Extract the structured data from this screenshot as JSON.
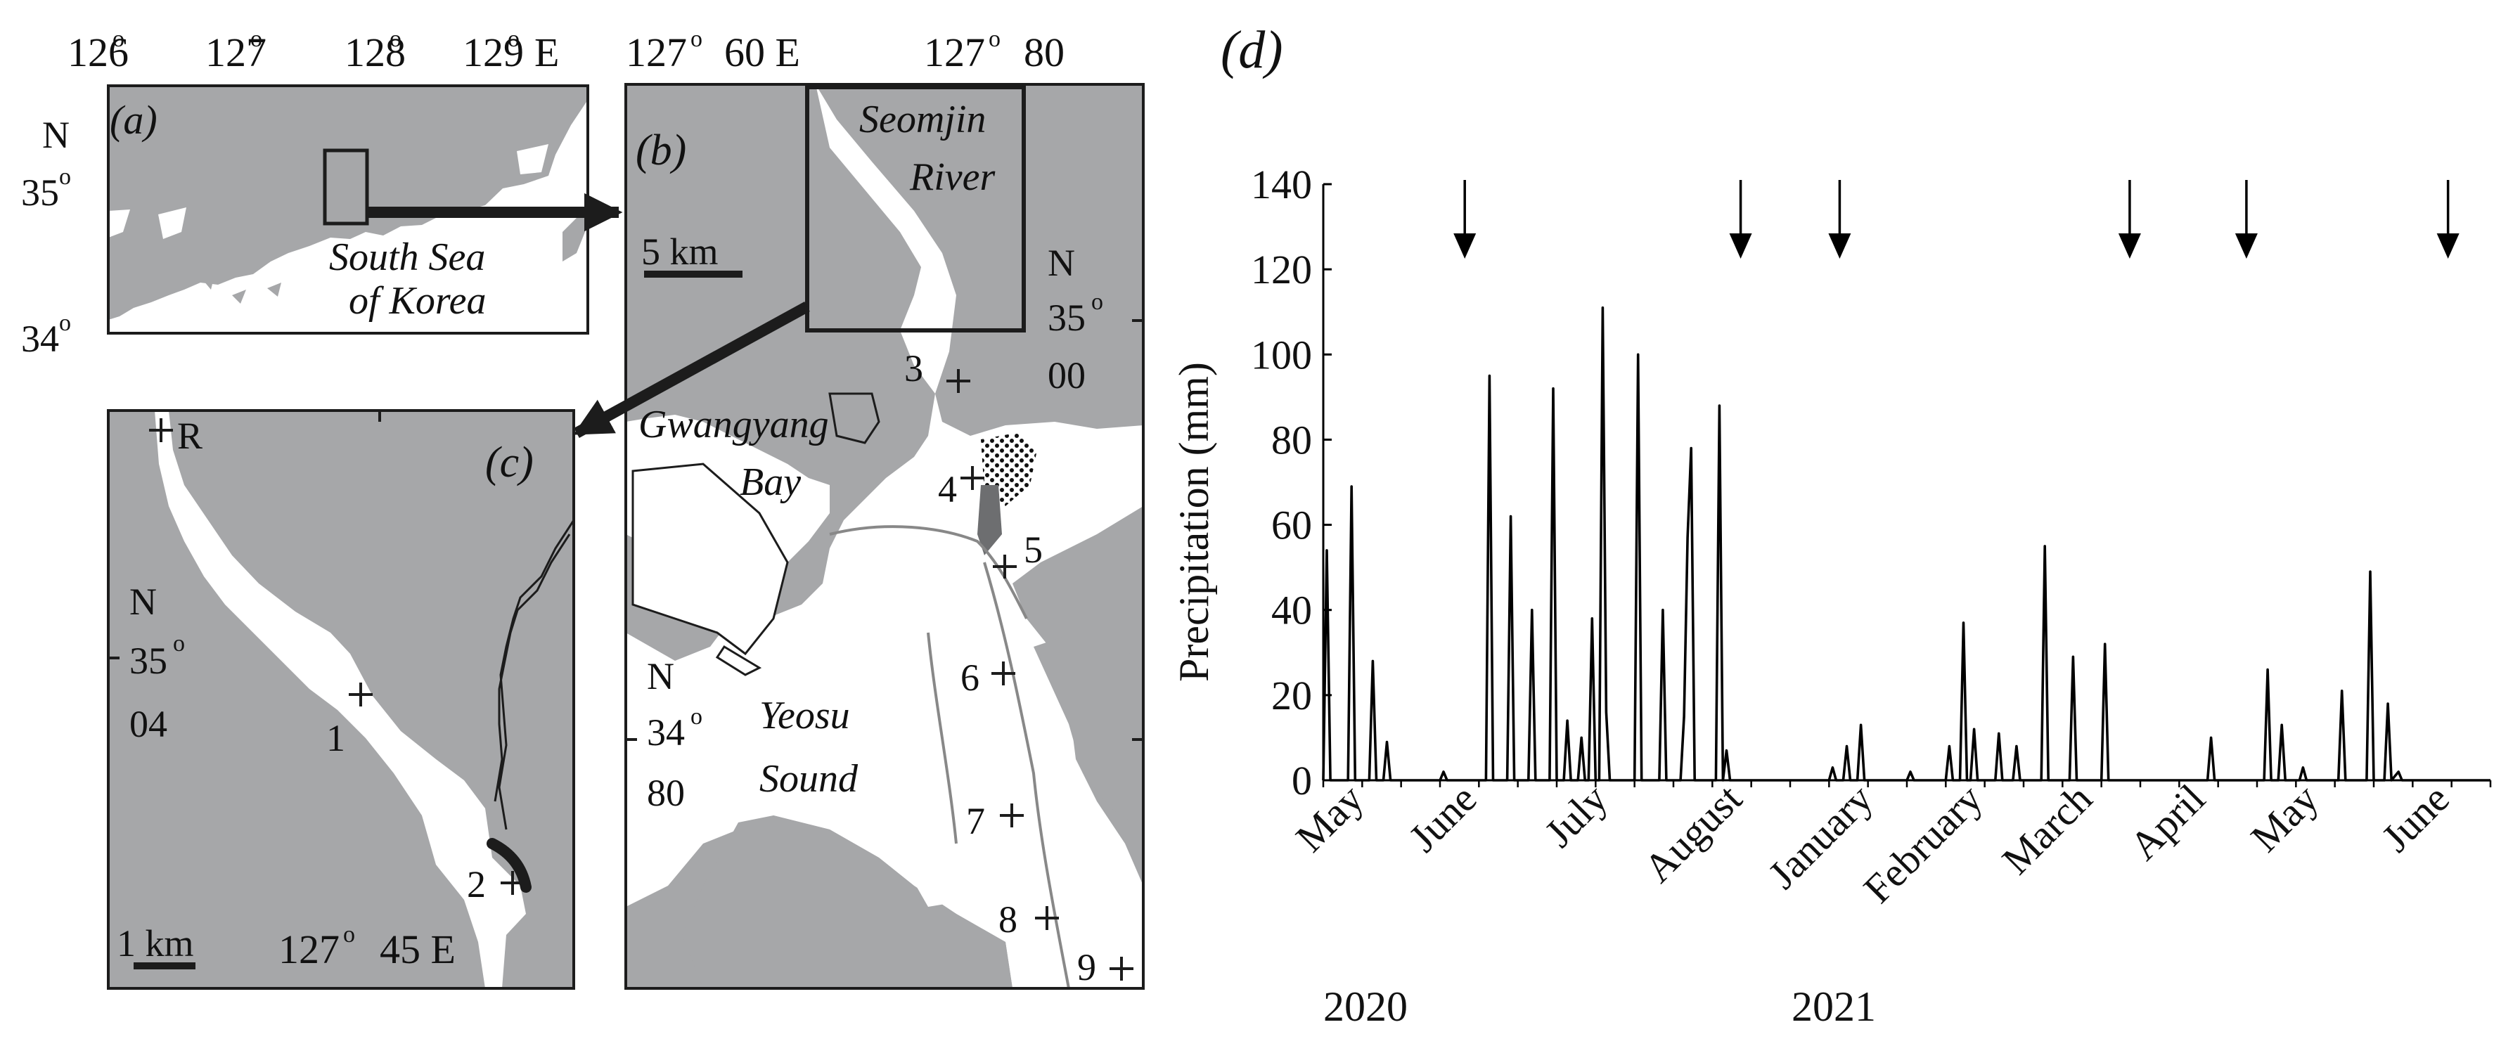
{
  "colors": {
    "land": "#a6a7a9",
    "water": "#ffffff",
    "ink": "#1c1c1c",
    "line": "#000000"
  },
  "panel_a": {
    "label": "(a)",
    "lon_ticks": [
      "126",
      "127",
      "128",
      "129"
    ],
    "lon_suffix_east": "E",
    "deg": "o",
    "lat_north": "N",
    "lat_ticks": [
      "35",
      "34"
    ],
    "sea_label_1": "South Sea",
    "sea_label_2": "of Korea"
  },
  "panel_b": {
    "label": "(b)",
    "top_left_lon": "127",
    "top_left_lon_rest": "60 E",
    "top_right_lon": "127",
    "top_right_lon_rest": "80",
    "scale": "5 km",
    "lat_right_n": "N",
    "lat_right_deg": "35",
    "lat_right_min": "00",
    "lat_left_n": "N",
    "lat_left_deg": "34",
    "lat_left_min": "80",
    "river_1": "Seomjin",
    "river_2": "River",
    "bay_1": "Gwangyang",
    "bay_2": "Bay",
    "sound_1": "Yeosu",
    "sound_2": "Sound",
    "stations": [
      "3",
      "4",
      "5",
      "6",
      "7",
      "8",
      "9"
    ]
  },
  "panel_c": {
    "label": "(c)",
    "ref": "R",
    "lat_n": "N",
    "lat_deg": "35",
    "lat_min": "04",
    "scale": "1 km",
    "lon_deg": "127",
    "lon_rest": "45 E",
    "stations": [
      "1",
      "2"
    ]
  },
  "chart_data": {
    "type": "line",
    "panel_label": "(d)",
    "ylabel": "Precipitation (mm)",
    "ylim": [
      0,
      140
    ],
    "yticks": [
      0,
      20,
      40,
      60,
      80,
      100,
      120,
      140
    ],
    "grid": false,
    "month_labels": [
      "May",
      "June",
      "July",
      "August",
      "January",
      "February",
      "March",
      "April",
      "May",
      "June"
    ],
    "year_labels": [
      "2020",
      "2021"
    ],
    "x_unit": "day",
    "x_range": [
      0,
      330
    ],
    "axis_break_after_day": 132,
    "sampling_arrow_days": [
      40,
      118,
      146,
      228,
      261,
      318
    ],
    "series": [
      {
        "values_by_day": [
          [
            0,
            0
          ],
          [
            1,
            54
          ],
          [
            2,
            0
          ],
          [
            7,
            0
          ],
          [
            8,
            69
          ],
          [
            9,
            0
          ],
          [
            13,
            0
          ],
          [
            14,
            28
          ],
          [
            15,
            0
          ],
          [
            17,
            0
          ],
          [
            18,
            9
          ],
          [
            19,
            0
          ],
          [
            33,
            0
          ],
          [
            34,
            2
          ],
          [
            35,
            0
          ],
          [
            46,
            0
          ],
          [
            47,
            95
          ],
          [
            48,
            0
          ],
          [
            52,
            0
          ],
          [
            53,
            62
          ],
          [
            54,
            0
          ],
          [
            58,
            0
          ],
          [
            59,
            40
          ],
          [
            60,
            0
          ],
          [
            64,
            0
          ],
          [
            65,
            92
          ],
          [
            66,
            0
          ],
          [
            68,
            0
          ],
          [
            69,
            14
          ],
          [
            70,
            0
          ],
          [
            72,
            0
          ],
          [
            73,
            10
          ],
          [
            74,
            0
          ],
          [
            75,
            0
          ],
          [
            76,
            38
          ],
          [
            77,
            0
          ],
          [
            78,
            0
          ],
          [
            79,
            111
          ],
          [
            80,
            16
          ],
          [
            81,
            0
          ],
          [
            88,
            0
          ],
          [
            89,
            100
          ],
          [
            90,
            0
          ],
          [
            95,
            0
          ],
          [
            96,
            40
          ],
          [
            97,
            0
          ],
          [
            101,
            0
          ],
          [
            102,
            15
          ],
          [
            103,
            57
          ],
          [
            104,
            78
          ],
          [
            105,
            0
          ],
          [
            111,
            0
          ],
          [
            112,
            88
          ],
          [
            113,
            0
          ],
          [
            114,
            7
          ],
          [
            115,
            0
          ],
          [
            143,
            0
          ],
          [
            144,
            3
          ],
          [
            145,
            0
          ],
          [
            147,
            0
          ],
          [
            148,
            8
          ],
          [
            149,
            0
          ],
          [
            151,
            0
          ],
          [
            152,
            13
          ],
          [
            153,
            0
          ],
          [
            165,
            0
          ],
          [
            166,
            2
          ],
          [
            167,
            0
          ],
          [
            176,
            0
          ],
          [
            177,
            8
          ],
          [
            178,
            0
          ],
          [
            180,
            0
          ],
          [
            181,
            37
          ],
          [
            182,
            0
          ],
          [
            183,
            0
          ],
          [
            184,
            12
          ],
          [
            185,
            0
          ],
          [
            190,
            0
          ],
          [
            191,
            11
          ],
          [
            192,
            0
          ],
          [
            195,
            0
          ],
          [
            196,
            8
          ],
          [
            197,
            0
          ],
          [
            203,
            0
          ],
          [
            204,
            55
          ],
          [
            205,
            0
          ],
          [
            211,
            0
          ],
          [
            212,
            29
          ],
          [
            213,
            0
          ],
          [
            220,
            0
          ],
          [
            221,
            32
          ],
          [
            222,
            0
          ],
          [
            250,
            0
          ],
          [
            251,
            10
          ],
          [
            252,
            0
          ],
          [
            266,
            0
          ],
          [
            267,
            26
          ],
          [
            268,
            0
          ],
          [
            270,
            0
          ],
          [
            271,
            13
          ],
          [
            272,
            0
          ],
          [
            276,
            0
          ],
          [
            277,
            3
          ],
          [
            278,
            0
          ],
          [
            287,
            0
          ],
          [
            288,
            21
          ],
          [
            289,
            0
          ],
          [
            295,
            0
          ],
          [
            296,
            49
          ],
          [
            297,
            0
          ],
          [
            300,
            0
          ],
          [
            301,
            18
          ],
          [
            302,
            0
          ],
          [
            304,
            2
          ],
          [
            305,
            0
          ],
          [
            330,
            0
          ]
        ]
      }
    ]
  }
}
